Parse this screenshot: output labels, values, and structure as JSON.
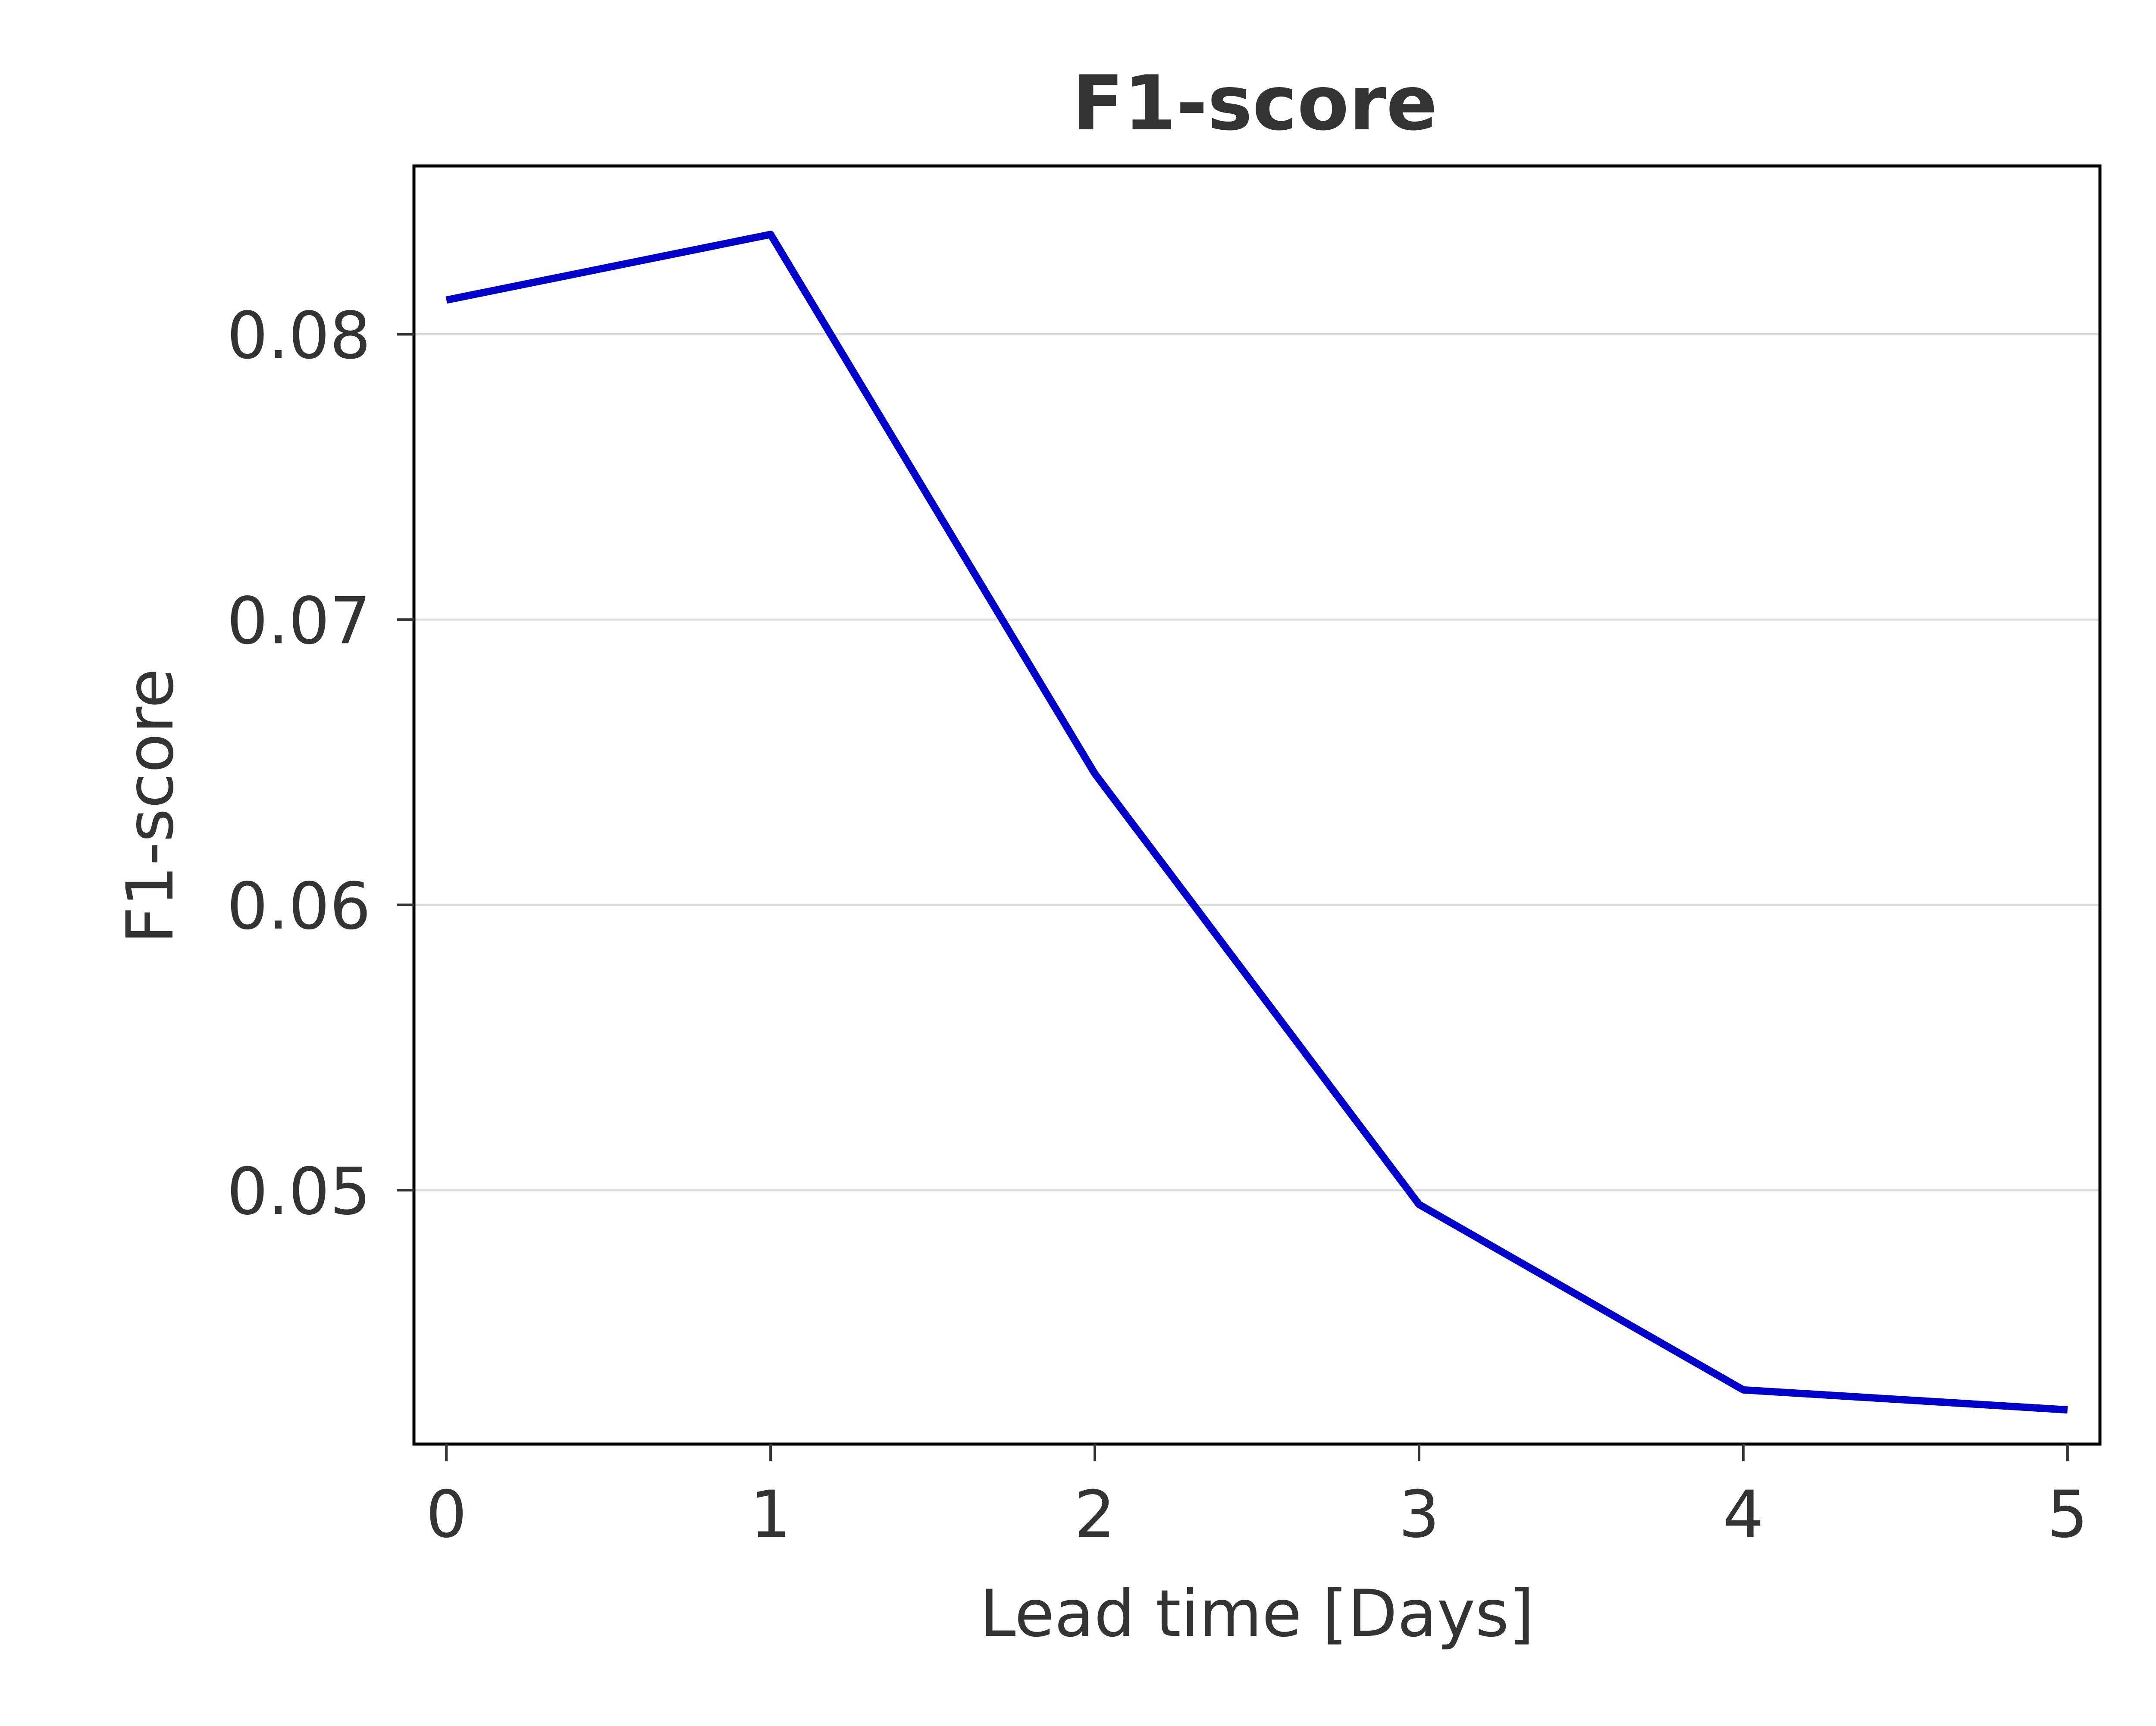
{
  "chart_data": {
    "type": "line",
    "title": "F1-score",
    "xlabel": "Lead time [Days]",
    "ylabel": "F1-score",
    "x": [
      0,
      1,
      2,
      3,
      4,
      5
    ],
    "x_ticks": [
      0,
      1,
      2,
      3,
      4,
      5
    ],
    "x_tick_labels": [
      "0",
      "1",
      "2",
      "3",
      "4",
      "5"
    ],
    "y_ticks": [
      0.05,
      0.06,
      0.07,
      0.08
    ],
    "y_tick_labels": [
      "0.05",
      "0.06",
      "0.07",
      "0.08"
    ],
    "xlim": [
      -0.1,
      5.1
    ],
    "ylim": [
      0.0411,
      0.0859
    ],
    "grid": "horizontal",
    "series": [
      {
        "values": [
          0.0812,
          0.0835,
          0.0646,
          0.0495,
          0.043,
          0.0423
        ],
        "color": "#0000cc"
      }
    ],
    "colors": {
      "line": "#0000cc",
      "text": "#333333",
      "grid": "#dddddd",
      "axis": "#000000"
    }
  }
}
